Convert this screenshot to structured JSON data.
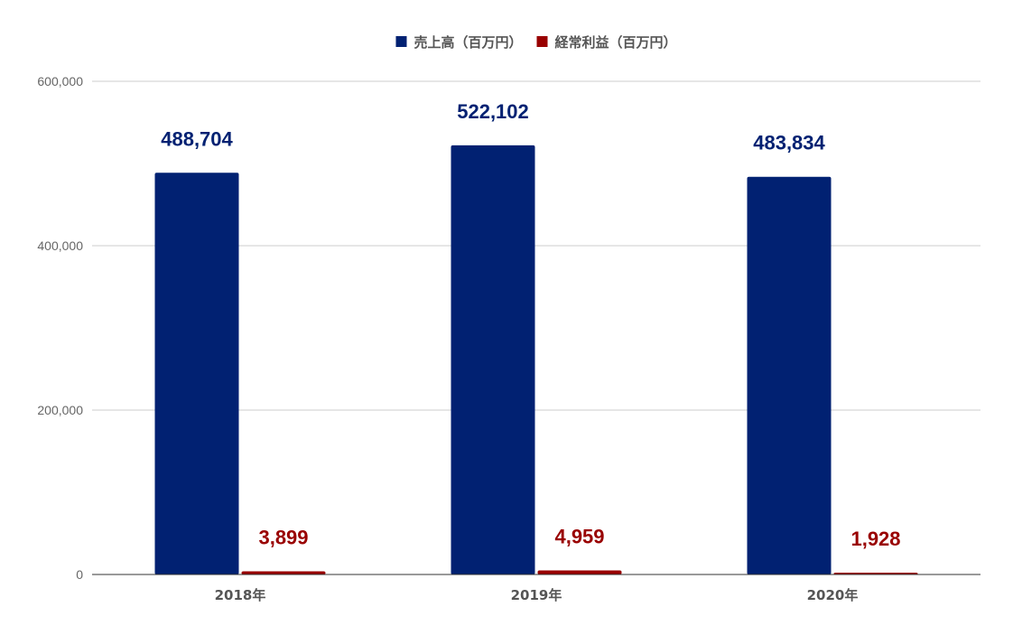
{
  "chart_data": {
    "type": "bar",
    "categories": [
      "2018年",
      "2019年",
      "2020年"
    ],
    "series": [
      {
        "name": "売上高（百万円）",
        "color": "#012172",
        "values": [
          488704,
          522102,
          483834
        ],
        "labels": [
          "488,704",
          "522,102",
          "483,834"
        ]
      },
      {
        "name": "経常利益（百万円）",
        "color": "#990000",
        "values": [
          3899,
          4959,
          1928
        ],
        "labels": [
          "3,899",
          "4,959",
          "1,928"
        ]
      }
    ],
    "yticks": [
      0,
      200000,
      400000,
      600000
    ],
    "ytick_labels": [
      "0",
      "200,000",
      "400,000",
      "600,000"
    ],
    "ylim": [
      0,
      600000
    ],
    "grid": true,
    "legend_position": "top-center",
    "colors": {
      "grid": "#cccccc",
      "axis": "#333333",
      "tick_text": "#666666",
      "category_text": "#555555"
    }
  }
}
